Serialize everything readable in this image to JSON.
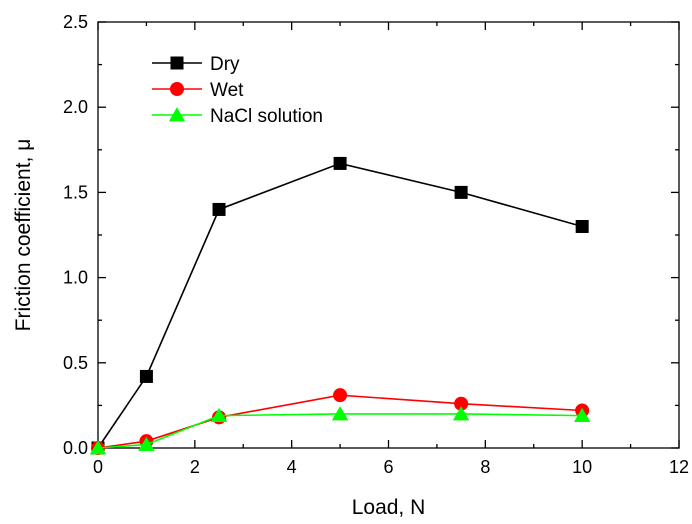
{
  "chart_data": {
    "type": "line",
    "title": "",
    "xlabel": "Load, N",
    "ylabel": "Friction coefficient, μ",
    "xlim": [
      0,
      12
    ],
    "ylim": [
      0,
      2.5
    ],
    "x_ticks": [
      0,
      2,
      4,
      6,
      8,
      10,
      12
    ],
    "y_ticks": [
      0.0,
      0.5,
      1.0,
      1.5,
      2.0,
      2.5
    ],
    "x_tick_labels": [
      "0",
      "2",
      "4",
      "6",
      "8",
      "10",
      "12"
    ],
    "y_tick_labels": [
      "0.0",
      "0.5",
      "1.0",
      "1.5",
      "2.0",
      "2.5"
    ],
    "grid": false,
    "legend_position": "top-left",
    "series": [
      {
        "name": "Dry",
        "color": "#000000",
        "marker": "square",
        "points": [
          [
            0,
            0.0
          ],
          [
            1,
            0.42
          ],
          [
            2.5,
            1.4
          ],
          [
            5,
            1.67
          ],
          [
            7.5,
            1.5
          ],
          [
            10,
            1.3
          ]
        ]
      },
      {
        "name": "Wet",
        "color": "#ff0000",
        "marker": "circle",
        "points": [
          [
            0,
            0.0
          ],
          [
            1,
            0.04
          ],
          [
            2.5,
            0.18
          ],
          [
            5,
            0.31
          ],
          [
            7.5,
            0.26
          ],
          [
            10,
            0.22
          ]
        ]
      },
      {
        "name": "NaCl solution",
        "color": "#00ff00",
        "marker": "triangle",
        "points": [
          [
            0,
            0.0
          ],
          [
            1,
            0.02
          ],
          [
            2.5,
            0.19
          ],
          [
            5,
            0.2
          ],
          [
            7.5,
            0.2
          ],
          [
            10,
            0.19
          ]
        ]
      }
    ]
  }
}
